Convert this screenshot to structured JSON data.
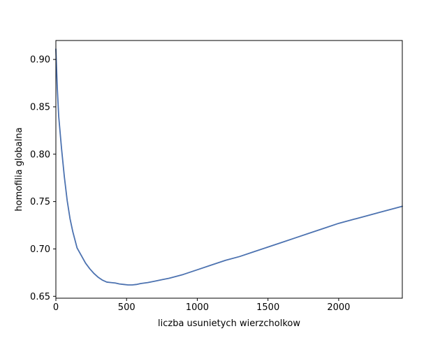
{
  "chart_data": {
    "type": "line",
    "title": "",
    "xlabel": "liczba usunietych wierzcholkow",
    "ylabel": "homofilia globalna",
    "xlim": [
      0,
      2450
    ],
    "ylim": [
      0.648,
      0.92
    ],
    "x_ticks": [
      0,
      500,
      1000,
      1500,
      2000
    ],
    "y_ticks": [
      0.65,
      0.7,
      0.75,
      0.8,
      0.85,
      0.9
    ],
    "x_tick_labels": [
      "0",
      "500",
      "1000",
      "1500",
      "2000"
    ],
    "y_tick_labels": [
      "0.65",
      "0.70",
      "0.75",
      "0.80",
      "0.85",
      "0.90"
    ],
    "grid": false,
    "legend": "none",
    "line_color": "#4c72b0",
    "series": [
      {
        "x": [
          0,
          10,
          20,
          40,
          60,
          80,
          100,
          120,
          150,
          180,
          210,
          240,
          270,
          300,
          330,
          360,
          390,
          420,
          450,
          480,
          510,
          540,
          570,
          600,
          650,
          700,
          750,
          800,
          900,
          1000,
          1100,
          1200,
          1300,
          1400,
          1500,
          1600,
          1700,
          1800,
          1900,
          2000,
          2100,
          2200,
          2300,
          2400,
          2450
        ],
        "y": [
          0.911,
          0.87,
          0.84,
          0.806,
          0.776,
          0.751,
          0.732,
          0.718,
          0.701,
          0.693,
          0.685,
          0.679,
          0.674,
          0.67,
          0.667,
          0.665,
          0.6645,
          0.664,
          0.663,
          0.6625,
          0.662,
          0.662,
          0.6625,
          0.6635,
          0.6645,
          0.666,
          0.6675,
          0.669,
          0.673,
          0.678,
          0.683,
          0.688,
          0.692,
          0.697,
          0.702,
          0.707,
          0.712,
          0.717,
          0.722,
          0.727,
          0.731,
          0.735,
          0.739,
          0.743,
          0.745
        ]
      }
    ]
  }
}
